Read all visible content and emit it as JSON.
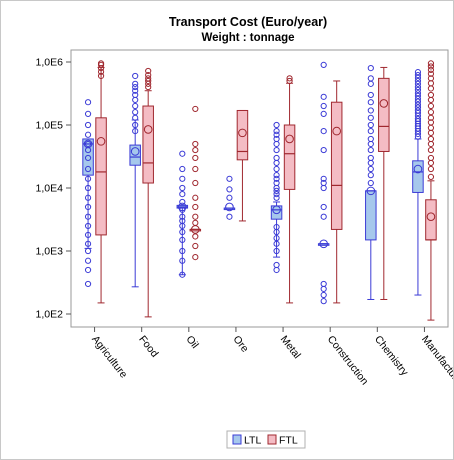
{
  "chart_data": {
    "type": "box",
    "title": "Transport Cost (Euro/year)",
    "subtitle": "Weight : tonnage",
    "y_scale": "log10",
    "ylim": [
      100,
      1000000
    ],
    "y_ticks": [
      {
        "value": 100,
        "label": "1,0E2"
      },
      {
        "value": 1000,
        "label": "1,0E3"
      },
      {
        "value": 10000,
        "label": "1,0E4"
      },
      {
        "value": 100000,
        "label": "1,0E5"
      },
      {
        "value": 1000000,
        "label": "1,0E6"
      }
    ],
    "categories": [
      "Agriculture",
      "Food",
      "Oil",
      "Ore",
      "Metal",
      "Construction",
      "Chemistry",
      "Manufacturing"
    ],
    "series": [
      {
        "name": "LTL",
        "fill": "#a6c8ec",
        "stroke": "#3b3bd6",
        "boxes": [
          {
            "category": "Agriculture",
            "whisker_low": 1100,
            "q1": 16000,
            "median": 50000,
            "q3": 60000,
            "whisker_high": 60000,
            "mean": 50000,
            "outliers": [
              300,
              500,
              700,
              1000,
              1300,
              1800,
              2500,
              3500,
              5000,
              7000,
              10000,
              14000,
              20000,
              30000,
              40000,
              50000,
              70000,
              100000,
              150000,
              230000
            ]
          },
          {
            "category": "Food",
            "whisker_low": 270,
            "q1": 23000,
            "median": 31000,
            "q3": 48000,
            "whisker_high": 120000,
            "mean": 38000,
            "outliers": [
              80000,
              100000,
              130000,
              160000,
              200000,
              250000,
              300000,
              350000,
              400000,
              450000,
              600000
            ]
          },
          {
            "category": "Oil",
            "whisker_low": 420,
            "q1": 4800,
            "median": 5000,
            "q3": 5300,
            "whisker_high": 5300,
            "mean": 5000,
            "outliers": [
              420,
              700,
              1000,
              1500,
              2000,
              2500,
              3000,
              3500,
              4500,
              6000,
              8000,
              10000,
              14000,
              20000,
              35000
            ]
          },
          {
            "category": "Ore",
            "whisker_low": 4800,
            "q1": 4800,
            "median": 4800,
            "q3": 4800,
            "whisker_high": 4800,
            "mean": 5000,
            "outliers": [
              3500,
              7000,
              9500,
              14000
            ]
          },
          {
            "category": "Metal",
            "whisker_low": 800,
            "q1": 3200,
            "median": 4500,
            "q3": 5200,
            "whisker_high": 6000,
            "mean": 4500,
            "outliers": [
              500,
              600,
              1000,
              1300,
              1600,
              2000,
              2400,
              7000,
              8000,
              9000,
              10000,
              12000,
              14000,
              16000,
              20000,
              25000,
              30000,
              40000,
              50000,
              60000,
              70000,
              80000,
              100000
            ]
          },
          {
            "category": "Construction",
            "whisker_low": 1300,
            "q1": 1300,
            "median": 1300,
            "q3": 1300,
            "whisker_high": 1300,
            "mean": 1300,
            "outliers": [
              160,
              200,
              250,
              300,
              3500,
              5000,
              10000,
              12000,
              14000,
              40000,
              80000,
              150000,
              200000,
              280000,
              900000
            ]
          },
          {
            "category": "Chemistry",
            "whisker_low": 170,
            "q1": 1500,
            "median": 9000,
            "q3": 9000,
            "whisker_high": 9000,
            "mean": 9000,
            "outliers": [
              12000,
              16000,
              20000,
              25000,
              30000,
              40000,
              50000,
              60000,
              80000,
              100000,
              130000,
              170000,
              230000,
              300000,
              450000,
              550000,
              800000
            ]
          },
          {
            "category": "Manufacturing",
            "whisker_low": 200,
            "q1": 8500,
            "median": 18000,
            "q3": 27000,
            "whisker_high": 60000,
            "mean": 20000,
            "outliers": [
              65000,
              72000,
              80000,
              88000,
              96000,
              105000,
              115000,
              125000,
              140000,
              155000,
              170000,
              190000,
              210000,
              235000,
              260000,
              290000,
              320000,
              360000,
              400000,
              450000,
              500000,
              560000,
              620000,
              690000
            ]
          }
        ]
      },
      {
        "name": "FTL",
        "fill": "#f4bcc4",
        "stroke": "#a0282f",
        "boxes": [
          {
            "category": "Agriculture",
            "whisker_low": 150,
            "q1": 1800,
            "median": 18000,
            "q3": 130000,
            "whisker_high": 820000,
            "mean": 55000,
            "outliers": [
              600000,
              700000,
              800000,
              900000,
              950000
            ]
          },
          {
            "category": "Food",
            "whisker_low": 90,
            "q1": 12000,
            "median": 25000,
            "q3": 200000,
            "whisker_high": 350000,
            "mean": 85000,
            "outliers": [
              400000,
              450000,
              500000,
              550000,
              620000,
              720000
            ]
          },
          {
            "category": "Oil",
            "whisker_low": 2200,
            "q1": 2200,
            "median": 2200,
            "q3": 2200,
            "whisker_high": 2200,
            "mean": 2200,
            "outliers": [
              800,
              1200,
              1700,
              2800,
              3500,
              5000,
              7000,
              12000,
              20000,
              30000,
              40000,
              50000,
              180000
            ]
          },
          {
            "category": "Ore",
            "whisker_low": 3000,
            "q1": 28000,
            "median": 38000,
            "q3": 170000,
            "whisker_high": 170000,
            "mean": 75000,
            "outliers": []
          },
          {
            "category": "Metal",
            "whisker_low": 150,
            "q1": 9500,
            "median": 35000,
            "q3": 100000,
            "whisker_high": 460000,
            "mean": 60000,
            "outliers": [
              500000,
              550000
            ]
          },
          {
            "category": "Construction",
            "whisker_low": 150,
            "q1": 2200,
            "median": 11000,
            "q3": 230000,
            "whisker_high": 500000,
            "mean": 80000,
            "outliers": []
          },
          {
            "category": "Chemistry",
            "whisker_low": 170,
            "q1": 38000,
            "median": 95000,
            "q3": 550000,
            "whisker_high": 820000,
            "mean": 220000,
            "outliers": []
          },
          {
            "category": "Manufacturing",
            "whisker_low": 80,
            "q1": 1500,
            "median": 1500,
            "q3": 6500,
            "whisker_high": 13000,
            "mean": 3500,
            "outliers": [
              15000,
              20000,
              25000,
              30000,
              40000,
              50000,
              60000,
              75000,
              90000,
              110000,
              130000,
              160000,
              200000,
              250000,
              300000,
              380000,
              460000,
              550000,
              650000,
              750000,
              850000,
              950000
            ]
          }
        ]
      }
    ],
    "legend": {
      "position": "bottom-center",
      "entries": [
        "LTL",
        "FTL"
      ]
    },
    "grid": false
  }
}
